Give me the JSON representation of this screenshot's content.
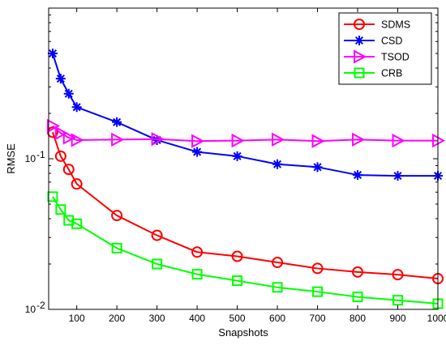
{
  "chart_data": {
    "type": "line",
    "title": "",
    "xlabel": "Snapshots",
    "ylabel": "RMSE",
    "xscale": "linear",
    "yscale": "log",
    "xlim": [
      30,
      1000
    ],
    "ylim": [
      0.01,
      1
    ],
    "xticks": [
      100,
      200,
      300,
      400,
      500,
      600,
      700,
      800,
      900,
      1000
    ],
    "yticks": [
      {
        "value": 0.01,
        "base": "10",
        "exp": "-2"
      },
      {
        "value": 0.1,
        "base": "10",
        "exp": "-1"
      }
    ],
    "grid": false,
    "legend_position": "top-right",
    "series": [
      {
        "name": "SDMS",
        "color": "#ff0000",
        "marker": "circle",
        "x": [
          40,
          60,
          80,
          100,
          200,
          300,
          400,
          500,
          600,
          700,
          800,
          900,
          1000
        ],
        "y": [
          0.15,
          0.104,
          0.085,
          0.068,
          0.042,
          0.031,
          0.024,
          0.0225,
          0.0205,
          0.0187,
          0.0177,
          0.017,
          0.016
        ]
      },
      {
        "name": "CSD",
        "color": "#0000ff",
        "marker": "star",
        "x": [
          40,
          60,
          80,
          100,
          200,
          300,
          400,
          500,
          600,
          700,
          800,
          900,
          1000
        ],
        "y": [
          0.5,
          0.34,
          0.27,
          0.22,
          0.175,
          0.133,
          0.111,
          0.104,
          0.092,
          0.088,
          0.078,
          0.077,
          0.077
        ]
      },
      {
        "name": "TSOD",
        "color": "#ff00ff",
        "marker": "triangle-right",
        "x": [
          40,
          60,
          80,
          100,
          200,
          300,
          400,
          500,
          600,
          700,
          800,
          900,
          1000
        ],
        "y": [
          0.165,
          0.148,
          0.138,
          0.133,
          0.134,
          0.135,
          0.131,
          0.132,
          0.134,
          0.131,
          0.134,
          0.132,
          0.132
        ]
      },
      {
        "name": "CRB",
        "color": "#00ff00",
        "marker": "square",
        "x": [
          40,
          60,
          80,
          100,
          200,
          300,
          400,
          500,
          600,
          700,
          800,
          900,
          1000
        ],
        "y": [
          0.056,
          0.046,
          0.039,
          0.037,
          0.0255,
          0.02,
          0.0171,
          0.0155,
          0.014,
          0.0131,
          0.0121,
          0.0115,
          0.0109
        ]
      }
    ]
  }
}
